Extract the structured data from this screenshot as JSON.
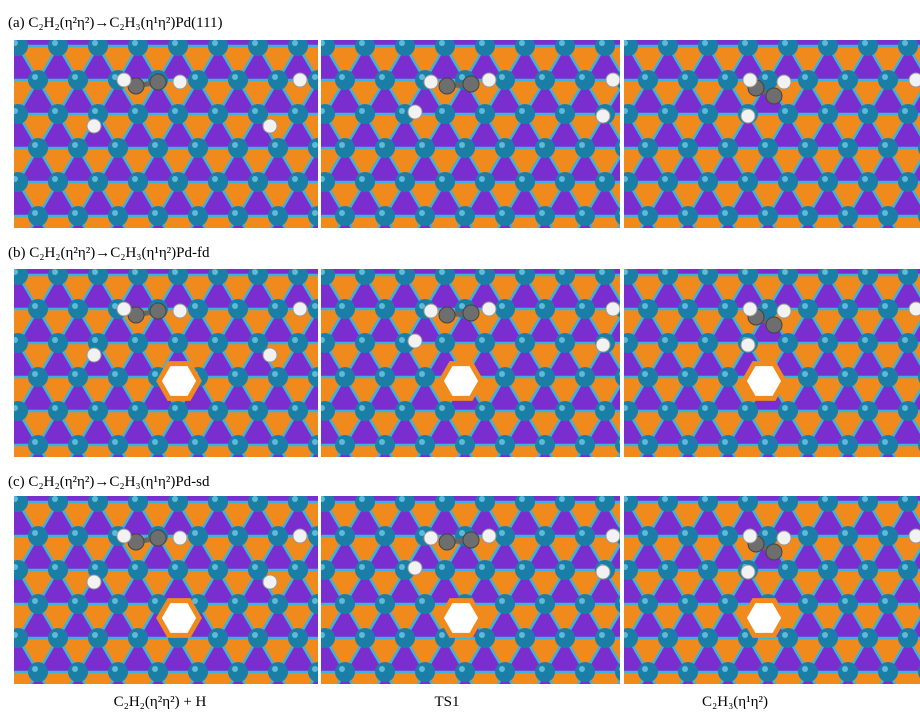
{
  "rows": [
    {
      "label": "(a) C₂H₂(η²η²)→C₂H₃(η¹η²)Pd(111)"
    },
    {
      "label": "(b) C₂H₂(η²η²)→C₂H₃(η¹η²)Pd-fd"
    },
    {
      "label": "(c) C₂H₂(η²η²)→C₂H₃(η¹η²)Pd-sd"
    }
  ],
  "columns": [
    "C₂H₂(η²η²) + H",
    "TS1",
    "C₂H₃(η¹η²)"
  ]
}
